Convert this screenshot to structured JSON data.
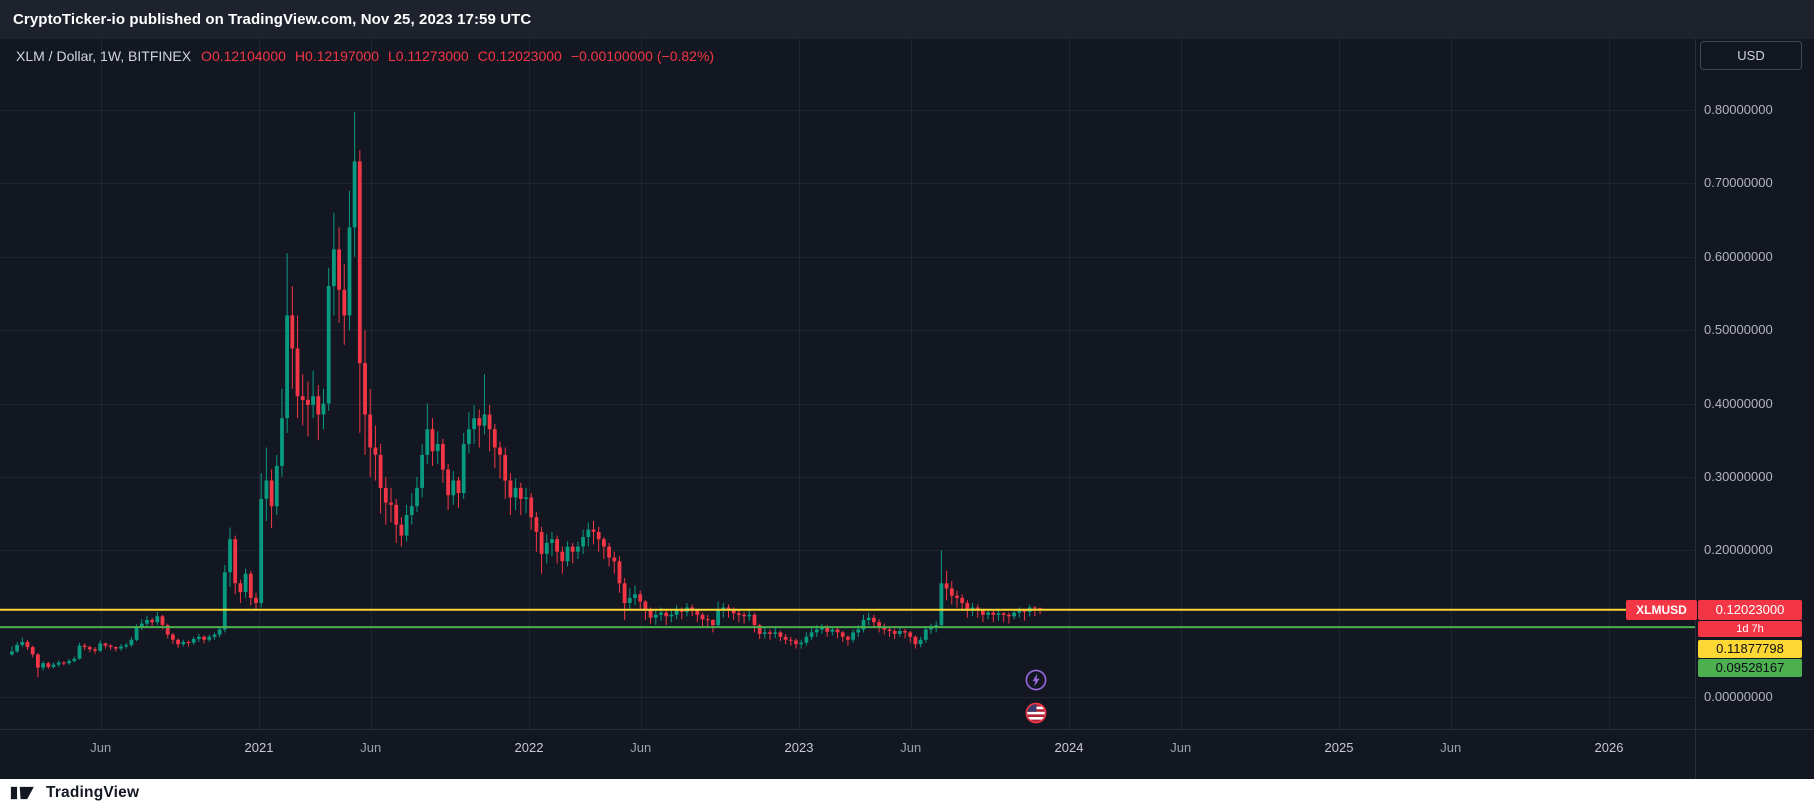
{
  "banner": {
    "text": "CryptoTicker-io published on TradingView.com, Nov 25, 2023 17:59 UTC"
  },
  "legend": {
    "symbol": "XLM / Dollar, 1W, BITFINEX",
    "open_label": "O",
    "open": "0.12104000",
    "high_label": "H",
    "high": "0.12197000",
    "low_label": "L",
    "low": "0.11273000",
    "close_label": "C",
    "close": "0.12023000",
    "change": "−0.00100000 (−0.82%)"
  },
  "currency_button": {
    "label": "USD"
  },
  "price_scale": {
    "ticks": [
      {
        "label": "0.80000000",
        "value": 0.8
      },
      {
        "label": "0.70000000",
        "value": 0.7
      },
      {
        "label": "0.60000000",
        "value": 0.6
      },
      {
        "label": "0.50000000",
        "value": 0.5
      },
      {
        "label": "0.40000000",
        "value": 0.4
      },
      {
        "label": "0.30000000",
        "value": 0.3
      },
      {
        "label": "0.20000000",
        "value": 0.2
      },
      {
        "label": "0.00000000",
        "value": 0.0
      }
    ],
    "last_price_badge": {
      "symbol": "XLMUSD",
      "price": "0.12023000",
      "countdown": "1d 7h",
      "color": "#f23645"
    },
    "yellow_badge": {
      "price": "0.11877798",
      "color": "#fdd835"
    },
    "green_badge": {
      "price": "0.09528167",
      "color": "#4caf50"
    }
  },
  "time_scale": {
    "ticks": [
      {
        "label": "Jun",
        "t": 2020.414
      },
      {
        "label": "2021",
        "t": 2021.0,
        "major": true
      },
      {
        "label": "Jun",
        "t": 2021.414
      },
      {
        "label": "2022",
        "t": 2022.0,
        "major": true
      },
      {
        "label": "Jun",
        "t": 2022.414
      },
      {
        "label": "2023",
        "t": 2023.0,
        "major": true
      },
      {
        "label": "Jun",
        "t": 2023.414
      },
      {
        "label": "2024",
        "t": 2024.0,
        "major": true
      },
      {
        "label": "Jun",
        "t": 2024.414
      },
      {
        "label": "2025",
        "t": 2025.0,
        "major": true
      },
      {
        "label": "Jun",
        "t": 2025.414
      },
      {
        "label": "2026",
        "t": 2026.0,
        "major": true
      }
    ]
  },
  "footer": {
    "brand": "TradingView"
  },
  "chart_data": {
    "type": "candlestick",
    "title": "XLM / Dollar, 1W, BITFINEX",
    "xlabel": "",
    "ylabel": "",
    "ylim": [
      0,
      0.8
    ],
    "grid": true,
    "up_color": "#089981",
    "down_color": "#f23645",
    "levels": [
      {
        "name": "yellow-level-line",
        "price": 0.11877798,
        "label": "0.11877798",
        "color": "#fdd835"
      },
      {
        "name": "green-level-line",
        "price": 0.09528167,
        "label": "0.09528167",
        "color": "#4caf50"
      }
    ],
    "events": [
      {
        "name": "lightning-event",
        "icon": "lightning",
        "t": 2023.877,
        "y": 680,
        "ring_color": "#9c6ade"
      },
      {
        "name": "us-flag-event",
        "icon": "us-flag",
        "t": 2023.877,
        "y": 713,
        "ring_color": "#f23645"
      }
    ],
    "series": {
      "note": "weekly bars [high, low, close]; open = previous close",
      "start_year": 2020.085,
      "interval_years": 0.019231,
      "first_open": 0.058,
      "hlc": [
        [
          0.069,
          0.056,
          0.062
        ],
        [
          0.075,
          0.06,
          0.071
        ],
        [
          0.081,
          0.068,
          0.075
        ],
        [
          0.078,
          0.064,
          0.068
        ],
        [
          0.07,
          0.054,
          0.058
        ],
        [
          0.06,
          0.027,
          0.04
        ],
        [
          0.049,
          0.036,
          0.046
        ],
        [
          0.048,
          0.038,
          0.041
        ],
        [
          0.047,
          0.039,
          0.044
        ],
        [
          0.05,
          0.041,
          0.047
        ],
        [
          0.049,
          0.043,
          0.046
        ],
        [
          0.052,
          0.044,
          0.049
        ],
        [
          0.055,
          0.047,
          0.052
        ],
        [
          0.074,
          0.051,
          0.07
        ],
        [
          0.073,
          0.064,
          0.068
        ],
        [
          0.07,
          0.061,
          0.065
        ],
        [
          0.068,
          0.059,
          0.063
        ],
        [
          0.077,
          0.061,
          0.073
        ],
        [
          0.074,
          0.066,
          0.07
        ],
        [
          0.072,
          0.064,
          0.068
        ],
        [
          0.069,
          0.062,
          0.066
        ],
        [
          0.072,
          0.063,
          0.069
        ],
        [
          0.074,
          0.066,
          0.071
        ],
        [
          0.082,
          0.068,
          0.078
        ],
        [
          0.099,
          0.076,
          0.095
        ],
        [
          0.106,
          0.091,
          0.1
        ],
        [
          0.111,
          0.095,
          0.105
        ],
        [
          0.108,
          0.096,
          0.102
        ],
        [
          0.116,
          0.098,
          0.11
        ],
        [
          0.112,
          0.092,
          0.098
        ],
        [
          0.1,
          0.08,
          0.085
        ],
        [
          0.087,
          0.072,
          0.078
        ],
        [
          0.08,
          0.067,
          0.072
        ],
        [
          0.078,
          0.069,
          0.075
        ],
        [
          0.077,
          0.069,
          0.074
        ],
        [
          0.082,
          0.071,
          0.079
        ],
        [
          0.086,
          0.075,
          0.082
        ],
        [
          0.084,
          0.073,
          0.078
        ],
        [
          0.085,
          0.075,
          0.082
        ],
        [
          0.088,
          0.078,
          0.085
        ],
        [
          0.096,
          0.081,
          0.092
        ],
        [
          0.18,
          0.088,
          0.17
        ],
        [
          0.231,
          0.15,
          0.215
        ],
        [
          0.22,
          0.14,
          0.155
        ],
        [
          0.16,
          0.128,
          0.143
        ],
        [
          0.175,
          0.135,
          0.168
        ],
        [
          0.172,
          0.125,
          0.135
        ],
        [
          0.142,
          0.118,
          0.128
        ],
        [
          0.305,
          0.122,
          0.27
        ],
        [
          0.34,
          0.24,
          0.295
        ],
        [
          0.31,
          0.23,
          0.26
        ],
        [
          0.33,
          0.248,
          0.315
        ],
        [
          0.42,
          0.3,
          0.38
        ],
        [
          0.605,
          0.36,
          0.52
        ],
        [
          0.56,
          0.42,
          0.475
        ],
        [
          0.52,
          0.38,
          0.41
        ],
        [
          0.44,
          0.37,
          0.405
        ],
        [
          0.43,
          0.355,
          0.398
        ],
        [
          0.445,
          0.38,
          0.41
        ],
        [
          0.425,
          0.35,
          0.385
        ],
        [
          0.42,
          0.365,
          0.4
        ],
        [
          0.585,
          0.39,
          0.56
        ],
        [
          0.66,
          0.52,
          0.61
        ],
        [
          0.64,
          0.51,
          0.555
        ],
        [
          0.59,
          0.48,
          0.52
        ],
        [
          0.69,
          0.5,
          0.64
        ],
        [
          0.797,
          0.6,
          0.73
        ],
        [
          0.745,
          0.36,
          0.455
        ],
        [
          0.5,
          0.33,
          0.385
        ],
        [
          0.42,
          0.3,
          0.34
        ],
        [
          0.37,
          0.295,
          0.33
        ],
        [
          0.345,
          0.25,
          0.285
        ],
        [
          0.3,
          0.235,
          0.265
        ],
        [
          0.285,
          0.238,
          0.262
        ],
        [
          0.27,
          0.21,
          0.235
        ],
        [
          0.245,
          0.205,
          0.22
        ],
        [
          0.262,
          0.212,
          0.248
        ],
        [
          0.278,
          0.235,
          0.26
        ],
        [
          0.3,
          0.252,
          0.285
        ],
        [
          0.345,
          0.272,
          0.33
        ],
        [
          0.4,
          0.318,
          0.365
        ],
        [
          0.38,
          0.315,
          0.335
        ],
        [
          0.362,
          0.318,
          0.345
        ],
        [
          0.352,
          0.292,
          0.31
        ],
        [
          0.318,
          0.255,
          0.275
        ],
        [
          0.308,
          0.262,
          0.295
        ],
        [
          0.3,
          0.258,
          0.278
        ],
        [
          0.36,
          0.27,
          0.345
        ],
        [
          0.388,
          0.332,
          0.365
        ],
        [
          0.398,
          0.345,
          0.38
        ],
        [
          0.392,
          0.34,
          0.37
        ],
        [
          0.44,
          0.358,
          0.385
        ],
        [
          0.398,
          0.335,
          0.365
        ],
        [
          0.372,
          0.312,
          0.34
        ],
        [
          0.348,
          0.298,
          0.33
        ],
        [
          0.34,
          0.27,
          0.295
        ],
        [
          0.305,
          0.248,
          0.272
        ],
        [
          0.298,
          0.255,
          0.285
        ],
        [
          0.292,
          0.248,
          0.27
        ],
        [
          0.285,
          0.25,
          0.272
        ],
        [
          0.278,
          0.228,
          0.245
        ],
        [
          0.252,
          0.198,
          0.225
        ],
        [
          0.232,
          0.168,
          0.195
        ],
        [
          0.222,
          0.182,
          0.21
        ],
        [
          0.225,
          0.192,
          0.215
        ],
        [
          0.22,
          0.182,
          0.198
        ],
        [
          0.205,
          0.168,
          0.185
        ],
        [
          0.212,
          0.178,
          0.205
        ],
        [
          0.21,
          0.182,
          0.198
        ],
        [
          0.212,
          0.188,
          0.205
        ],
        [
          0.228,
          0.195,
          0.218
        ],
        [
          0.238,
          0.205,
          0.228
        ],
        [
          0.24,
          0.208,
          0.225
        ],
        [
          0.232,
          0.198,
          0.215
        ],
        [
          0.218,
          0.188,
          0.205
        ],
        [
          0.21,
          0.178,
          0.19
        ],
        [
          0.198,
          0.168,
          0.185
        ],
        [
          0.192,
          0.142,
          0.155
        ],
        [
          0.162,
          0.105,
          0.128
        ],
        [
          0.148,
          0.118,
          0.135
        ],
        [
          0.152,
          0.125,
          0.14
        ],
        [
          0.145,
          0.118,
          0.13
        ],
        [
          0.132,
          0.105,
          0.118
        ],
        [
          0.122,
          0.1,
          0.108
        ],
        [
          0.12,
          0.098,
          0.112
        ],
        [
          0.122,
          0.104,
          0.115
        ],
        [
          0.118,
          0.098,
          0.11
        ],
        [
          0.118,
          0.102,
          0.112
        ],
        [
          0.125,
          0.106,
          0.118
        ],
        [
          0.122,
          0.106,
          0.116
        ],
        [
          0.128,
          0.11,
          0.122
        ],
        [
          0.126,
          0.11,
          0.118
        ],
        [
          0.12,
          0.102,
          0.112
        ],
        [
          0.115,
          0.096,
          0.106
        ],
        [
          0.112,
          0.095,
          0.105
        ],
        [
          0.106,
          0.088,
          0.098
        ],
        [
          0.13,
          0.094,
          0.118
        ],
        [
          0.128,
          0.108,
          0.122
        ],
        [
          0.126,
          0.108,
          0.118
        ],
        [
          0.122,
          0.105,
          0.114
        ],
        [
          0.118,
          0.102,
          0.112
        ],
        [
          0.116,
          0.1,
          0.11
        ],
        [
          0.118,
          0.104,
          0.112
        ],
        [
          0.115,
          0.088,
          0.098
        ],
        [
          0.1,
          0.079,
          0.086
        ],
        [
          0.094,
          0.08,
          0.088
        ],
        [
          0.092,
          0.078,
          0.086
        ],
        [
          0.094,
          0.08,
          0.088
        ],
        [
          0.09,
          0.076,
          0.082
        ],
        [
          0.086,
          0.072,
          0.078
        ],
        [
          0.082,
          0.07,
          0.077
        ],
        [
          0.08,
          0.066,
          0.072
        ],
        [
          0.078,
          0.066,
          0.074
        ],
        [
          0.088,
          0.07,
          0.082
        ],
        [
          0.094,
          0.078,
          0.088
        ],
        [
          0.098,
          0.082,
          0.092
        ],
        [
          0.1,
          0.086,
          0.094
        ],
        [
          0.098,
          0.082,
          0.089
        ],
        [
          0.096,
          0.084,
          0.092
        ],
        [
          0.095,
          0.08,
          0.088
        ],
        [
          0.09,
          0.075,
          0.082
        ],
        [
          0.084,
          0.07,
          0.078
        ],
        [
          0.092,
          0.074,
          0.088
        ],
        [
          0.098,
          0.082,
          0.092
        ],
        [
          0.112,
          0.088,
          0.105
        ],
        [
          0.115,
          0.098,
          0.108
        ],
        [
          0.112,
          0.094,
          0.102
        ],
        [
          0.106,
          0.088,
          0.095
        ],
        [
          0.1,
          0.085,
          0.092
        ],
        [
          0.096,
          0.082,
          0.09
        ],
        [
          0.093,
          0.079,
          0.086
        ],
        [
          0.094,
          0.082,
          0.09
        ],
        [
          0.093,
          0.08,
          0.088
        ],
        [
          0.09,
          0.074,
          0.082
        ],
        [
          0.084,
          0.066,
          0.072
        ],
        [
          0.082,
          0.068,
          0.078
        ],
        [
          0.096,
          0.074,
          0.092
        ],
        [
          0.1,
          0.086,
          0.095
        ],
        [
          0.104,
          0.088,
          0.098
        ],
        [
          0.2,
          0.094,
          0.155
        ],
        [
          0.172,
          0.132,
          0.148
        ],
        [
          0.158,
          0.126,
          0.138
        ],
        [
          0.145,
          0.122,
          0.135
        ],
        [
          0.14,
          0.118,
          0.128
        ],
        [
          0.132,
          0.108,
          0.118
        ],
        [
          0.128,
          0.11,
          0.122
        ],
        [
          0.126,
          0.108,
          0.118
        ],
        [
          0.12,
          0.102,
          0.112
        ],
        [
          0.12,
          0.106,
          0.115
        ],
        [
          0.118,
          0.102,
          0.112
        ],
        [
          0.118,
          0.104,
          0.114
        ],
        [
          0.116,
          0.102,
          0.112
        ],
        [
          0.115,
          0.1,
          0.11
        ],
        [
          0.12,
          0.106,
          0.115
        ],
        [
          0.122,
          0.108,
          0.118
        ],
        [
          0.12,
          0.104,
          0.116
        ],
        [
          0.126,
          0.11,
          0.122
        ],
        [
          0.124,
          0.11,
          0.12104
        ],
        [
          0.12197,
          0.11273,
          0.12023
        ]
      ]
    }
  }
}
